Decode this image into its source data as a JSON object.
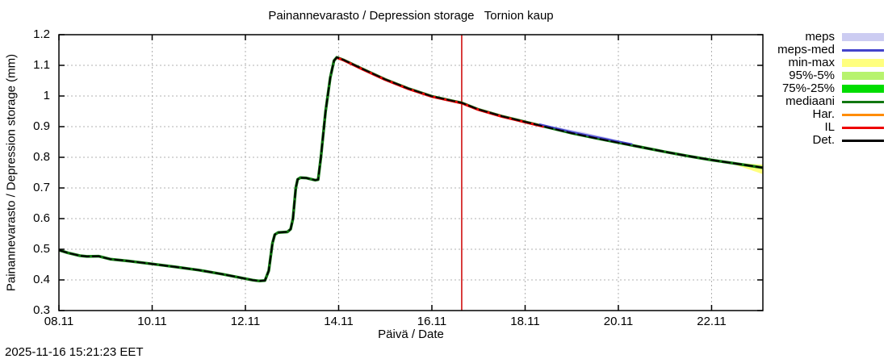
{
  "title": "Painannevarasto / Depression storage   Tornion kaup",
  "timestamp": "2025-11-16 15:21:23 EET",
  "axes": {
    "y_label": "Painannevarasto / Depression storage (mm)",
    "x_label": "Päivä / Date"
  },
  "legend": {
    "position": "outside-top-right",
    "items": [
      {
        "label": "meps",
        "kind": "band",
        "color": "#ccccf2"
      },
      {
        "label": "meps-med",
        "kind": "line",
        "color": "#4444cc"
      },
      {
        "label": "min-max",
        "kind": "band",
        "color": "#ffff7f"
      },
      {
        "label": "95%-5%",
        "kind": "band",
        "color": "#b7f36e"
      },
      {
        "label": "75%-25%",
        "kind": "band",
        "color": "#00dd00"
      },
      {
        "label": "mediaani",
        "kind": "line",
        "color": "#117711"
      },
      {
        "label": "Har.",
        "kind": "line",
        "color": "#ff8c00"
      },
      {
        "label": "IL",
        "kind": "line",
        "color": "#ee0000"
      },
      {
        "label": "Det.",
        "kind": "line",
        "color": "#000000"
      }
    ]
  },
  "chart_data": {
    "type": "line",
    "title": "Painannevarasto / Depression storage   Tornion kaup",
    "xlabel": "Päivä / Date",
    "ylabel": "Painannevarasto / Depression storage (mm)",
    "grid": "dotted",
    "grid_color": "#b0b0b0",
    "border_color": "#000000",
    "x_domain": [
      8.0,
      23.1
    ],
    "ylim": [
      0.3,
      1.2
    ],
    "x_ticks": [
      {
        "v": 8,
        "label": "08.11"
      },
      {
        "v": 10,
        "label": "10.11"
      },
      {
        "v": 12,
        "label": "12.11"
      },
      {
        "v": 14,
        "label": "14.11"
      },
      {
        "v": 16,
        "label": "16.11"
      },
      {
        "v": 18,
        "label": "18.11"
      },
      {
        "v": 20,
        "label": "20.11"
      },
      {
        "v": 22,
        "label": "22.11"
      }
    ],
    "y_ticks": [
      {
        "v": 0.3,
        "label": "0.3"
      },
      {
        "v": 0.4,
        "label": "0.4"
      },
      {
        "v": 0.5,
        "label": "0.5"
      },
      {
        "v": 0.6,
        "label": "0.6"
      },
      {
        "v": 0.7,
        "label": "0.7"
      },
      {
        "v": 0.8,
        "label": "0.8"
      },
      {
        "v": 0.9,
        "label": "0.9"
      },
      {
        "v": 1.0,
        "label": "1"
      },
      {
        "v": 1.1,
        "label": "1.1"
      },
      {
        "v": 1.2,
        "label": "1.2"
      }
    ],
    "current_time_x": 16.64,
    "current_time_color": "#cc0000",
    "det_points": [
      [
        8.0,
        0.497
      ],
      [
        8.2,
        0.488
      ],
      [
        8.45,
        0.479
      ],
      [
        8.6,
        0.4765
      ],
      [
        8.85,
        0.4775
      ],
      [
        9.1,
        0.468
      ],
      [
        9.5,
        0.4615
      ],
      [
        10.0,
        0.452
      ],
      [
        10.5,
        0.4425
      ],
      [
        11.0,
        0.432
      ],
      [
        11.5,
        0.419
      ],
      [
        11.9,
        0.407
      ],
      [
        12.15,
        0.3995
      ],
      [
        12.3,
        0.3965
      ],
      [
        12.42,
        0.398
      ],
      [
        12.5,
        0.43
      ],
      [
        12.58,
        0.52
      ],
      [
        12.63,
        0.548
      ],
      [
        12.7,
        0.5545
      ],
      [
        12.9,
        0.5565
      ],
      [
        12.97,
        0.5655
      ],
      [
        13.02,
        0.6
      ],
      [
        13.08,
        0.7
      ],
      [
        13.12,
        0.728
      ],
      [
        13.18,
        0.7335
      ],
      [
        13.3,
        0.7325
      ],
      [
        13.5,
        0.7255
      ],
      [
        13.56,
        0.727
      ],
      [
        13.62,
        0.8
      ],
      [
        13.72,
        0.95
      ],
      [
        13.82,
        1.06
      ],
      [
        13.9,
        1.115
      ],
      [
        13.96,
        1.126
      ],
      [
        14.1,
        1.118
      ],
      [
        14.5,
        1.089
      ],
      [
        15.0,
        1.054
      ],
      [
        15.5,
        1.024
      ],
      [
        16.0,
        0.999
      ],
      [
        16.5,
        0.982
      ],
      [
        16.64,
        0.9775
      ],
      [
        17.0,
        0.956
      ],
      [
        17.5,
        0.934
      ],
      [
        18.0,
        0.9155
      ],
      [
        18.5,
        0.897
      ],
      [
        19.0,
        0.879
      ],
      [
        19.5,
        0.863
      ],
      [
        20.0,
        0.848
      ],
      [
        20.5,
        0.833
      ],
      [
        21.0,
        0.818
      ],
      [
        21.5,
        0.804
      ],
      [
        22.0,
        0.791
      ],
      [
        22.5,
        0.78
      ],
      [
        23.1,
        0.766
      ]
    ],
    "bands": [
      {
        "name": "meps",
        "color": "#ccccf2",
        "stops": [
          [
            18.3,
            0.001,
            0.001
          ],
          [
            18.7,
            0.008,
            0.003
          ],
          [
            19.2,
            0.011,
            0.004
          ],
          [
            19.8,
            0.009,
            0.003
          ],
          [
            20.3,
            0.002,
            0.001
          ]
        ]
      },
      {
        "name": "min-max",
        "color": "#ffff7f",
        "stops": [
          [
            22.35,
            0.001,
            0.001
          ],
          [
            22.65,
            0.004,
            0.008
          ],
          [
            23.1,
            0.01,
            0.021
          ]
        ]
      }
    ],
    "overlays": [
      {
        "name": "mediaani",
        "color": "#117711",
        "width": 3.5,
        "range": [
          8.0,
          23.1
        ],
        "offset": 0
      },
      {
        "name": "IL",
        "color": "#ee0000",
        "width": 3,
        "range": [
          13.96,
          18.4
        ],
        "offset": -0.001
      },
      {
        "name": "meps-med",
        "color": "#4444cc",
        "width": 2,
        "range": [
          18.3,
          20.3
        ],
        "offset": 0.004
      },
      {
        "name": "Det.",
        "color": "#000000",
        "width": 2,
        "range": [
          8.0,
          23.1
        ],
        "offset": 0,
        "dash": "11 3"
      }
    ]
  }
}
